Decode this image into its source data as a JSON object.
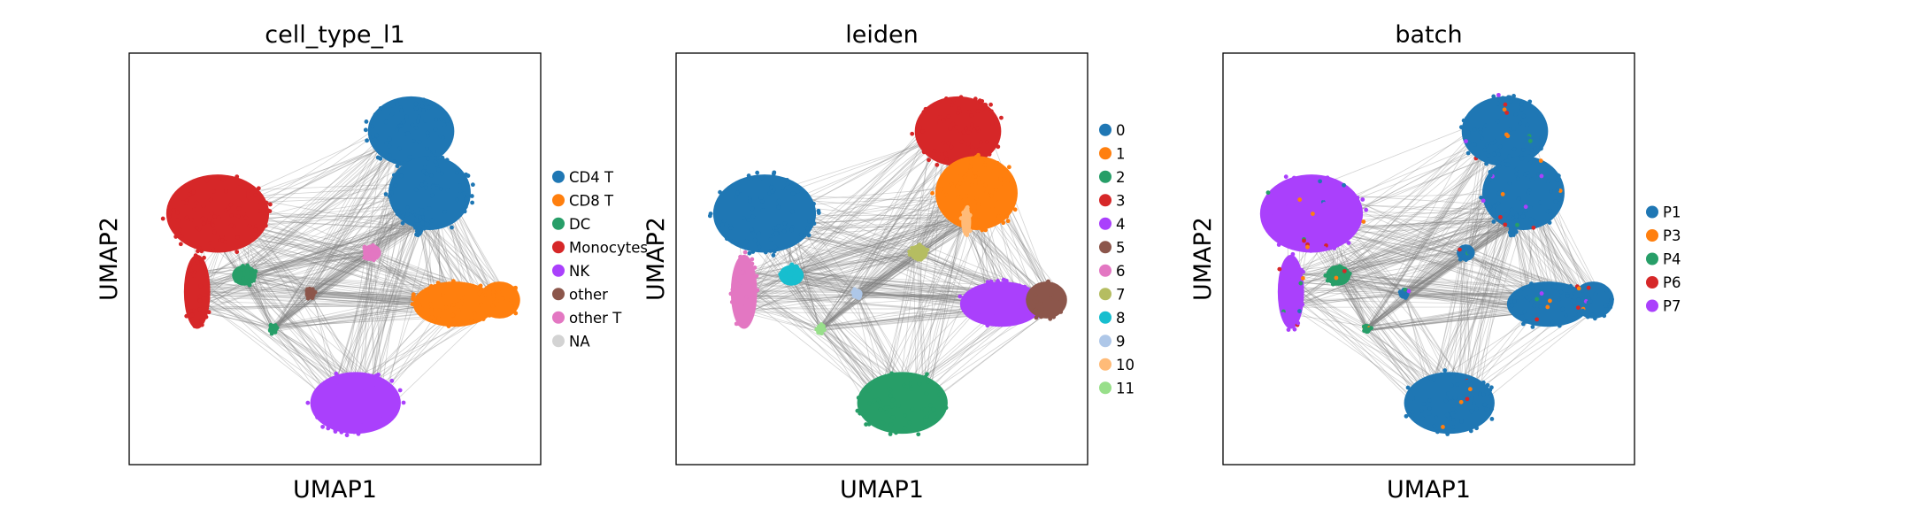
{
  "chart_data": [
    {
      "type": "scatter",
      "title": "cell_type_l1",
      "xlabel": "UMAP1",
      "ylabel": "UMAP2",
      "xlim": [
        0,
        10
      ],
      "ylim": [
        0,
        10
      ],
      "grid": false,
      "ticks": false,
      "legend_position": "right",
      "categories": [
        {
          "name": "CD4 T",
          "color": "#1f77b4"
        },
        {
          "name": "CD8 T",
          "color": "#ff7f0e"
        },
        {
          "name": "DC",
          "color": "#279e68"
        },
        {
          "name": "Monocytes",
          "color": "#d62728"
        },
        {
          "name": "NK",
          "color": "#aa40fc"
        },
        {
          "name": "other",
          "color": "#8c564b"
        },
        {
          "name": "other T",
          "color": "#e377c2"
        },
        {
          "name": "NA",
          "color": "#d3d3d3"
        }
      ]
    },
    {
      "type": "scatter",
      "title": "leiden",
      "xlabel": "UMAP1",
      "ylabel": "UMAP2",
      "xlim": [
        0,
        10
      ],
      "ylim": [
        0,
        10
      ],
      "grid": false,
      "ticks": false,
      "legend_position": "right",
      "categories": [
        {
          "name": "0",
          "color": "#1f77b4"
        },
        {
          "name": "1",
          "color": "#ff7f0e"
        },
        {
          "name": "2",
          "color": "#279e68"
        },
        {
          "name": "3",
          "color": "#d62728"
        },
        {
          "name": "4",
          "color": "#aa40fc"
        },
        {
          "name": "5",
          "color": "#8c564b"
        },
        {
          "name": "6",
          "color": "#e377c2"
        },
        {
          "name": "7",
          "color": "#b5bd61"
        },
        {
          "name": "8",
          "color": "#17becf"
        },
        {
          "name": "9",
          "color": "#aec7e8"
        },
        {
          "name": "10",
          "color": "#ffbb78"
        },
        {
          "name": "11",
          "color": "#98df8a"
        }
      ]
    },
    {
      "type": "scatter",
      "title": "batch",
      "xlabel": "UMAP1",
      "ylabel": "UMAP2",
      "xlim": [
        0,
        10
      ],
      "ylim": [
        0,
        10
      ],
      "grid": false,
      "ticks": false,
      "legend_position": "right",
      "categories": [
        {
          "name": "P1",
          "color": "#1f77b4"
        },
        {
          "name": "P3",
          "color": "#ff7f0e"
        },
        {
          "name": "P4",
          "color": "#279e68"
        },
        {
          "name": "P6",
          "color": "#d62728"
        },
        {
          "name": "P7",
          "color": "#aa40fc"
        }
      ]
    }
  ],
  "clusters": [
    {
      "label": "CD4 T",
      "cx": 6.85,
      "cy": 8.1,
      "rx": 1.05,
      "ry": 0.85,
      "leiden": "3",
      "batch": "P1"
    },
    {
      "label": "CD4 T",
      "cx": 7.3,
      "cy": 6.6,
      "rx": 1.0,
      "ry": 0.9,
      "leiden": "1",
      "batch": "P1"
    },
    {
      "label": "Monocytes",
      "cx": 2.15,
      "cy": 6.1,
      "rx": 1.25,
      "ry": 0.95,
      "leiden": "0",
      "batch": "P7"
    },
    {
      "label": "Monocytes",
      "cx": 1.65,
      "cy": 4.2,
      "rx": 0.32,
      "ry": 0.9,
      "leiden": "6",
      "batch": "P7"
    },
    {
      "label": "DC",
      "cx": 2.8,
      "cy": 4.6,
      "rx": 0.3,
      "ry": 0.25,
      "leiden": "8",
      "batch": "P4"
    },
    {
      "label": "CD8 T",
      "cx": 7.9,
      "cy": 3.9,
      "rx": 1.0,
      "ry": 0.55,
      "leiden": "4",
      "batch": "P1"
    },
    {
      "label": "CD8 T",
      "cx": 9.0,
      "cy": 4.0,
      "rx": 0.5,
      "ry": 0.45,
      "leiden": "5",
      "batch": "P1"
    },
    {
      "label": "NK",
      "cx": 5.5,
      "cy": 1.5,
      "rx": 1.1,
      "ry": 0.75,
      "leiden": "2",
      "batch": "P1"
    },
    {
      "label": "other T",
      "cx": 5.9,
      "cy": 5.15,
      "rx": 0.22,
      "ry": 0.2,
      "leiden": "7",
      "batch": "P1"
    },
    {
      "label": "other",
      "cx": 4.4,
      "cy": 4.15,
      "rx": 0.13,
      "ry": 0.12,
      "leiden": "9",
      "batch": "P1"
    },
    {
      "label": "CD4 T",
      "cx": 7.05,
      "cy": 5.9,
      "rx": 0.12,
      "ry": 0.35,
      "leiden": "10",
      "batch": "P1"
    },
    {
      "label": "DC",
      "cx": 3.5,
      "cy": 3.3,
      "rx": 0.1,
      "ry": 0.12,
      "leiden": "11",
      "batch": "P4"
    }
  ]
}
